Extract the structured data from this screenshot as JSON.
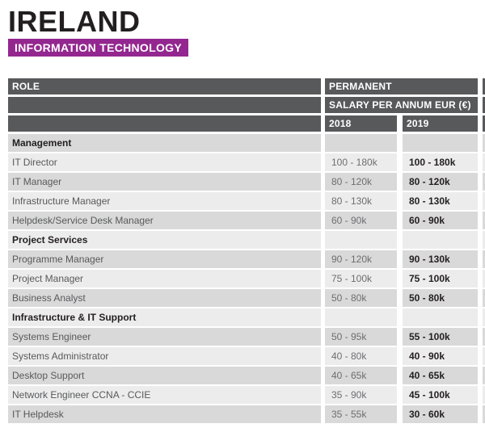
{
  "page": {
    "title": "IRELAND",
    "subtitle": "INFORMATION TECHNOLOGY"
  },
  "table": {
    "role_header": "ROLE",
    "group_header": "PERMANENT",
    "salary_header": "SALARY PER ANNUM EUR (€)",
    "year_headers": [
      "2018",
      "2019"
    ],
    "rows": [
      {
        "type": "section",
        "role": "Management",
        "y2018": "",
        "y2019": ""
      },
      {
        "type": "data",
        "role": "IT Director",
        "y2018": "100 - 180k",
        "y2019": "100 - 180k"
      },
      {
        "type": "data",
        "role": "IT Manager",
        "y2018": "80 - 120k",
        "y2019": "80 - 120k"
      },
      {
        "type": "data",
        "role": "Infrastructure Manager",
        "y2018": "80 - 130k",
        "y2019": "80 - 130k"
      },
      {
        "type": "data",
        "role": "Helpdesk/Service Desk Manager",
        "y2018": "60 - 90k",
        "y2019": "60 - 90k"
      },
      {
        "type": "section",
        "role": "Project Services",
        "y2018": "",
        "y2019": ""
      },
      {
        "type": "data",
        "role": "Programme Manager",
        "y2018": "90 - 120k",
        "y2019": "90 - 130k"
      },
      {
        "type": "data",
        "role": "Project Manager",
        "y2018": "75 - 100k",
        "y2019": "75 - 100k"
      },
      {
        "type": "data",
        "role": "Business Analyst",
        "y2018": "50 - 80k",
        "y2019": "50 - 80k"
      },
      {
        "type": "section",
        "role": "Infrastructure & IT Support",
        "y2018": "",
        "y2019": ""
      },
      {
        "type": "data",
        "role": "Systems Engineer",
        "y2018": "50 - 95k",
        "y2019": "55 - 100k"
      },
      {
        "type": "data",
        "role": "Systems Administrator",
        "y2018": "40 - 80k",
        "y2019": "40 - 90k"
      },
      {
        "type": "data",
        "role": "Desktop Support",
        "y2018": "40 - 65k",
        "y2019": "40 - 65k"
      },
      {
        "type": "data",
        "role": "Network Engineer CCNA - CCIE",
        "y2018": "35 - 90k",
        "y2019": "45 - 100k"
      },
      {
        "type": "data",
        "role": "IT Helpdesk",
        "y2018": "35 - 55k",
        "y2019": "30 - 60k"
      }
    ]
  },
  "colors": {
    "accent_purple": "#93278f",
    "header_bar": "#58595b",
    "row_light": "#ececec",
    "row_dark": "#d9d9d9",
    "text_dark": "#231f20",
    "text_gray": "#6d6e71"
  }
}
